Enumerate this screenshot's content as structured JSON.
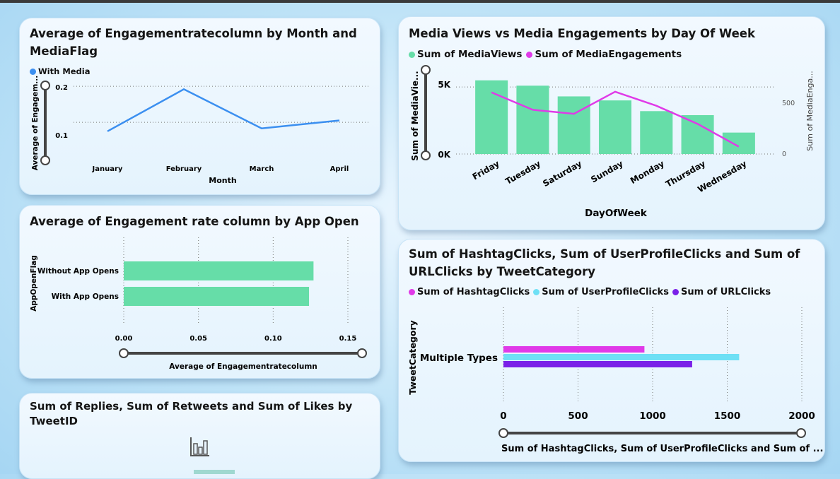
{
  "colors": {
    "line_blue": "#3b8ff0",
    "bar_green": "#66dda8",
    "pink": "#e03ae8",
    "cyan": "#6ee0f5",
    "purple": "#7a20e8"
  },
  "card1": {
    "title": "Average of Engagementratecolumn by Month and MediaFlag",
    "legend": "With Media",
    "y_axis_label": "Average of Engagem...",
    "x_axis_label": "Month",
    "y_ticks": [
      "0.2",
      "0.1"
    ],
    "chart_data": {
      "type": "line",
      "x": [
        "January",
        "February",
        "March",
        "April"
      ],
      "series": [
        {
          "name": "With Media",
          "values": [
            0.075,
            0.192,
            0.083,
            0.105
          ]
        }
      ],
      "xlabel": "Month",
      "ylabel": "Average of Engagem...",
      "ylim": [
        0.0,
        0.22
      ],
      "grid": true
    }
  },
  "card2": {
    "title": "Average of Engagement rate column by App Open",
    "y_axis_label": "AppOpenFlag",
    "x_axis_label": "Average of Engagementratecolumn",
    "x_ticks": [
      "0.00",
      "0.05",
      "0.10",
      "0.15"
    ],
    "chart_data": {
      "type": "bar",
      "orientation": "horizontal",
      "categories": [
        "Without App Opens",
        "With App Opens"
      ],
      "values": [
        0.127,
        0.124
      ],
      "xlabel": "Average of Engagementratecolumn",
      "ylabel": "AppOpenFlag",
      "xlim": [
        0.0,
        0.15
      ]
    }
  },
  "card3": {
    "title": "Sum of Replies, Sum of Retweets and Sum of Likes by TweetID",
    "icon": "bar-chart-icon"
  },
  "card4": {
    "title": "Media Views vs Media Engagements by Day Of Week",
    "legend": [
      "Sum of MediaViews",
      "Sum of MediaEngagements"
    ],
    "y_left_label": "Sum of MediaVie...",
    "y_right_label": "Sum of MediaEnga...",
    "x_axis_label": "DayOfWeek",
    "y_left_ticks": [
      "5K",
      "0K"
    ],
    "y_right_ticks": [
      "500",
      "0"
    ],
    "chart_data": {
      "type": "bar",
      "categories": [
        "Friday",
        "Tuesday",
        "Saturday",
        "Sunday",
        "Monday",
        "Thursday",
        "Wednesday"
      ],
      "series": [
        {
          "name": "Sum of MediaViews",
          "type": "bar",
          "values": [
            5500,
            5100,
            4300,
            4000,
            3200,
            2900,
            1600
          ]
        },
        {
          "name": "Sum of MediaEngagements",
          "type": "line",
          "values": [
            460,
            330,
            300,
            465,
            360,
            225,
            55
          ]
        }
      ],
      "xlabel": "DayOfWeek",
      "ylabel": "Sum of MediaVie...",
      "ylim": [
        0,
        5800
      ],
      "y2lim": [
        0,
        580
      ]
    }
  },
  "card5": {
    "title": "Sum of HashtagClicks, Sum of UserProfileClicks and Sum of URLClicks by TweetCategory",
    "legend": [
      "Sum of HashtagClicks",
      "Sum of UserProfileClicks",
      "Sum of URLClicks"
    ],
    "y_axis_label": "TweetCategory",
    "x_axis_label": "Sum of HashtagClicks, Sum of UserProfileClicks and Sum of ...",
    "x_ticks": [
      "0",
      "500",
      "1000",
      "1500",
      "2000"
    ],
    "chart_data": {
      "type": "bar",
      "orientation": "horizontal",
      "categories": [
        "Multiple Types"
      ],
      "series": [
        {
          "name": "Sum of HashtagClicks",
          "values": [
            945
          ]
        },
        {
          "name": "Sum of UserProfileClicks",
          "values": [
            1580
          ]
        },
        {
          "name": "Sum of URLClicks",
          "values": [
            1265
          ]
        }
      ],
      "xlabel": "Sum of HashtagClicks, Sum of UserProfileClicks and Sum of ...",
      "ylabel": "TweetCategory",
      "xlim": [
        0,
        2000
      ]
    }
  }
}
